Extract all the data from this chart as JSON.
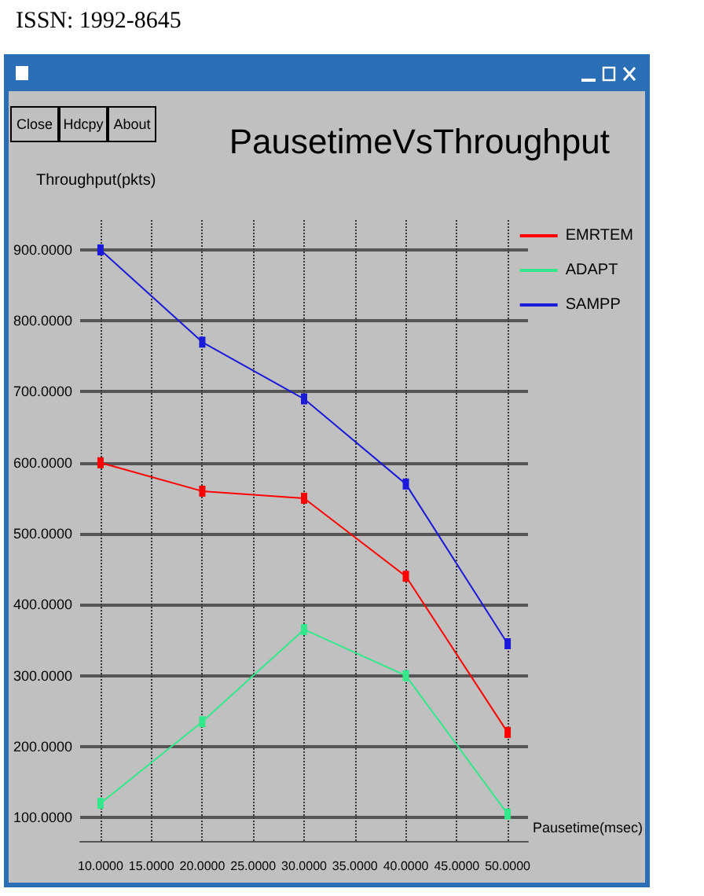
{
  "chart_data": {
    "type": "line",
    "title": "PausetimeVsThroughput",
    "xlabel": "Pausetime(msec)",
    "ylabel": "Throughput(pkts)",
    "annotations": [
      "ISSN: 1992-8645",
      "Close",
      "Hdcpy",
      "About"
    ],
    "x": [
      10,
      20,
      30,
      40,
      50
    ],
    "series": [
      {
        "name": "EMRTEM",
        "color": "#ff0000",
        "values": [
          600,
          560,
          550,
          440,
          220
        ]
      },
      {
        "name": "ADAPT",
        "color": "#33e88a",
        "values": [
          120,
          235,
          365,
          300,
          105
        ]
      },
      {
        "name": "SAMPP",
        "color": "#1a1ad8",
        "values": [
          900,
          770,
          690,
          570,
          345
        ]
      }
    ],
    "xlim": [
      8,
      52
    ],
    "ylim": [
      67,
      942
    ],
    "xticks": [
      {
        "value": 10,
        "label": "10.0000"
      },
      {
        "value": 15,
        "label": "15.0000"
      },
      {
        "value": 20,
        "label": "20.0000"
      },
      {
        "value": 25,
        "label": "25.0000"
      },
      {
        "value": 30,
        "label": "30.0000"
      },
      {
        "value": 35,
        "label": "35.0000"
      },
      {
        "value": 40,
        "label": "40.0000"
      },
      {
        "value": 45,
        "label": "45.0000"
      },
      {
        "value": 50,
        "label": "50.0000"
      }
    ],
    "yticks": [
      {
        "value": 100,
        "label": "100.0000"
      },
      {
        "value": 200,
        "label": "200.0000"
      },
      {
        "value": 300,
        "label": "300.0000"
      },
      {
        "value": 400,
        "label": "400.0000"
      },
      {
        "value": 500,
        "label": "500.0000"
      },
      {
        "value": 600,
        "label": "600.0000"
      },
      {
        "value": 700,
        "label": "700.0000"
      },
      {
        "value": 800,
        "label": "800.0000"
      },
      {
        "value": 900,
        "label": "900.0000"
      }
    ],
    "grid": true,
    "legend": "right",
    "marker": "square",
    "line_style": "solid"
  }
}
